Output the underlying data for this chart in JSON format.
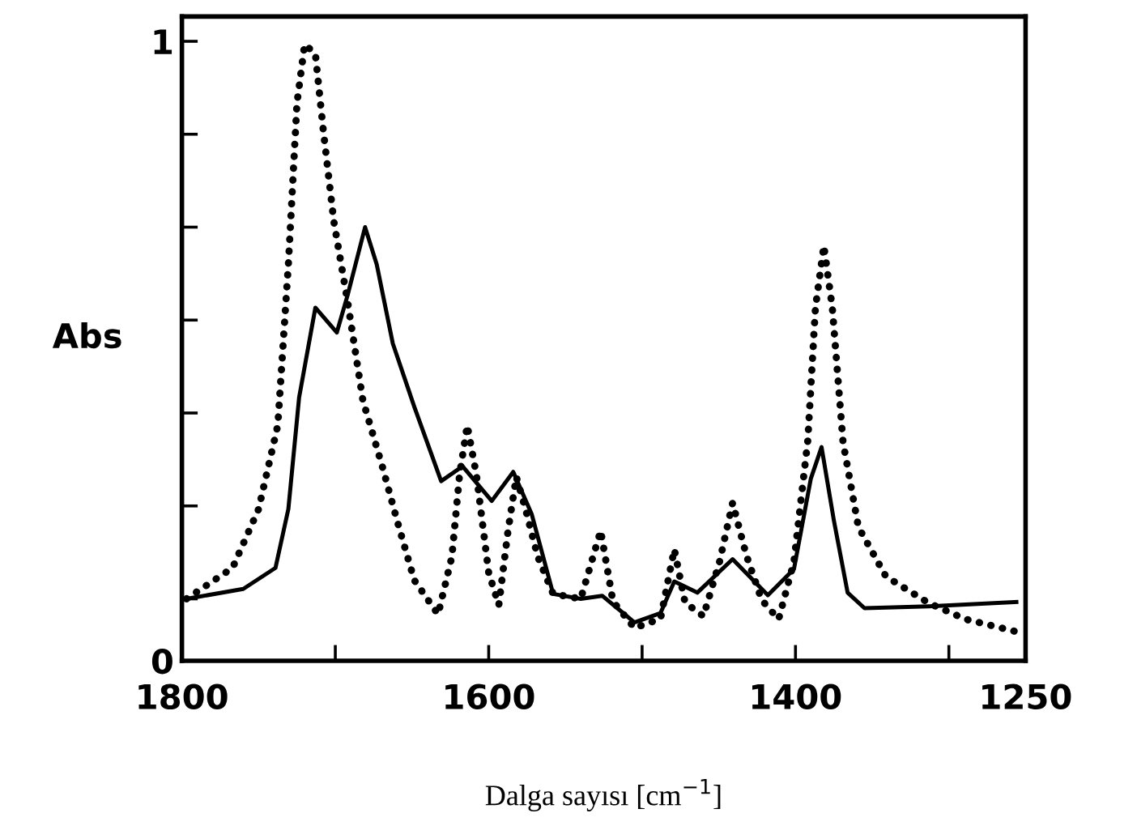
{
  "chart_data": {
    "type": "line",
    "xlabel": "Dalga sayısı [cm$^{−1}$]",
    "ylabel": "Abs",
    "xlim": [
      1800,
      1250
    ],
    "ylim": [
      0,
      1.04
    ],
    "xticks": [
      1800,
      {
        "value": 1700,
        "label": null
      },
      1600,
      {
        "value": 1500,
        "label": null
      },
      1400,
      {
        "value": 1300,
        "label": null
      },
      1250
    ],
    "yticks": [
      0,
      {
        "value": 0.1,
        "label": null
      },
      {
        "value": 0.25,
        "label": null
      },
      {
        "value": 0.4,
        "label": null
      },
      {
        "value": 0.55,
        "label": null
      },
      {
        "value": 0.7,
        "label": null
      },
      {
        "value": 0.85,
        "label": null
      },
      1
    ],
    "grid": false,
    "marker": "none",
    "series": [
      {
        "color": "#000000",
        "line_style": "dotted",
        "x": [
          1797,
          1767,
          1750,
          1737.5,
          1730.6,
          1725,
          1720,
          1713,
          1708,
          1701,
          1692,
          1682,
          1669.5,
          1659,
          1648.5,
          1633,
          1624,
          1619,
          1614,
          1608,
          1600,
          1593.4,
          1587.4,
          1582,
          1576,
          1568,
          1558,
          1540,
          1527,
          1519,
          1505,
          1488,
          1479,
          1472,
          1460,
          1449.5,
          1441,
          1432,
          1422,
          1411,
          1401,
          1392,
          1387,
          1381.5,
          1376,
          1369,
          1359,
          1341,
          1313,
          1289,
          1256
        ],
        "values": [
          0.1,
          0.15,
          0.245,
          0.38,
          0.64,
          0.9,
          0.995,
          0.98,
          0.86,
          0.71,
          0.58,
          0.42,
          0.315,
          0.22,
          0.13,
          0.075,
          0.168,
          0.3,
          0.38,
          0.3,
          0.142,
          0.09,
          0.21,
          0.297,
          0.245,
          0.168,
          0.108,
          0.1,
          0.21,
          0.096,
          0.053,
          0.068,
          0.18,
          0.094,
          0.072,
          0.16,
          0.255,
          0.17,
          0.098,
          0.067,
          0.16,
          0.355,
          0.57,
          0.67,
          0.57,
          0.353,
          0.216,
          0.136,
          0.093,
          0.067,
          0.047
        ]
      },
      {
        "color": "#000000",
        "line_style": "solid",
        "x": [
          1797,
          1760,
          1739,
          1730.6,
          1723.6,
          1713,
          1699,
          1692,
          1680.6,
          1673,
          1662.5,
          1648.5,
          1631,
          1617,
          1598,
          1584,
          1572,
          1558,
          1540,
          1526,
          1505,
          1488,
          1479,
          1464,
          1441,
          1418,
          1401,
          1390,
          1383,
          1375,
          1366,
          1355,
          1313,
          1256
        ],
        "values": [
          0.1,
          0.116,
          0.15,
          0.245,
          0.425,
          0.57,
          0.53,
          0.59,
          0.7,
          0.64,
          0.512,
          0.41,
          0.29,
          0.314,
          0.258,
          0.305,
          0.237,
          0.108,
          0.1,
          0.105,
          0.062,
          0.077,
          0.128,
          0.11,
          0.164,
          0.106,
          0.148,
          0.294,
          0.345,
          0.227,
          0.11,
          0.085,
          0.088,
          0.095
        ]
      }
    ]
  }
}
